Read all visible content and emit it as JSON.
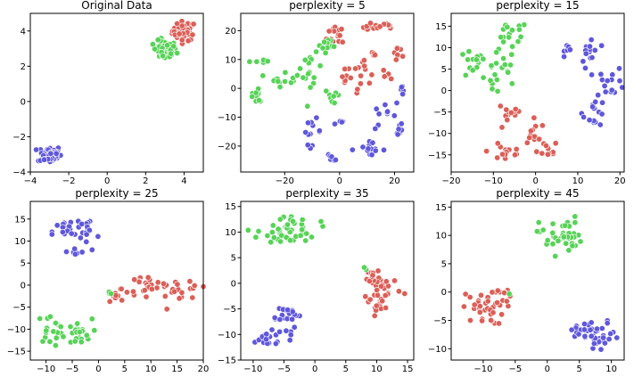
{
  "chart_data": [
    {
      "type": "scatter",
      "title": "Original Data",
      "xlim": [
        -4,
        5
      ],
      "ylim": [
        -4,
        5
      ],
      "xticks": [
        -4,
        -2,
        0,
        2,
        4
      ],
      "yticks": [
        -4,
        -2,
        0,
        2,
        4
      ],
      "series": [
        {
          "color": "#db5f57",
          "clusters": [
            {
              "cx": 4.0,
              "cy": 4.0,
              "rx": 0.55,
              "ry": 0.5,
              "n": 50
            }
          ]
        },
        {
          "color": "#57d357",
          "clusters": [
            {
              "cx": 3.0,
              "cy": 2.9,
              "rx": 0.55,
              "ry": 0.5,
              "n": 50
            }
          ]
        },
        {
          "color": "#5f57db",
          "clusters": [
            {
              "cx": -3.0,
              "cy": -3.0,
              "rx": 0.55,
              "ry": 0.45,
              "n": 50
            }
          ]
        }
      ]
    },
    {
      "type": "scatter",
      "title": "perplexity = 5",
      "xlim": [
        -36,
        27
      ],
      "ylim": [
        -29,
        26
      ],
      "xticks": [
        -20,
        0,
        20
      ],
      "yticks": [
        -20,
        -10,
        0,
        10,
        20
      ],
      "series": [
        {
          "color": "#db5f57",
          "clusters": [
            {
              "cx": 0,
              "cy": 19,
              "rx": 4,
              "ry": 4,
              "n": 14
            },
            {
              "cx": 10,
              "cy": 21,
              "rx": 4,
              "ry": 1,
              "n": 10
            },
            {
              "cx": 17,
              "cy": 22,
              "rx": 3,
              "ry": 1,
              "n": 8
            },
            {
              "cx": 8,
              "cy": 6,
              "rx": 3,
              "ry": 6,
              "n": 12
            },
            {
              "cx": 2,
              "cy": 3,
              "rx": 3,
              "ry": 3,
              "n": 8
            },
            {
              "cx": 18,
              "cy": 5,
              "rx": 2,
              "ry": 2,
              "n": 6
            },
            {
              "cx": 21,
              "cy": 12,
              "rx": 2,
              "ry": 4,
              "n": 6
            },
            {
              "cx": 12,
              "cy": 12,
              "rx": 2,
              "ry": 1,
              "n": 4
            }
          ]
        },
        {
          "color": "#57d357",
          "clusters": [
            {
              "cx": -30,
              "cy": 9.5,
              "rx": 2.5,
              "ry": 0.6,
              "n": 6
            },
            {
              "cx": -30,
              "cy": -3,
              "rx": 4,
              "ry": 3,
              "n": 12
            },
            {
              "cx": -20,
              "cy": 4,
              "rx": 5,
              "ry": 3,
              "n": 14
            },
            {
              "cx": -10,
              "cy": 5,
              "rx": 3,
              "ry": 6,
              "n": 14
            },
            {
              "cx": -5,
              "cy": 15,
              "rx": 4,
              "ry": 4,
              "n": 10
            },
            {
              "cx": -2,
              "cy": -3,
              "rx": 3,
              "ry": 3,
              "n": 8
            }
          ]
        },
        {
          "color": "#5f57db",
          "clusters": [
            {
              "cx": -10,
              "cy": -15,
              "rx": 3,
              "ry": 4,
              "n": 12
            },
            {
              "cx": -3,
              "cy": -24,
              "rx": 3,
              "ry": 1,
              "n": 6
            },
            {
              "cx": 10,
              "cy": -21,
              "rx": 6,
              "ry": 2,
              "n": 14
            },
            {
              "cx": 16,
              "cy": -10,
              "rx": 4,
              "ry": 4,
              "n": 10
            },
            {
              "cx": 23,
              "cy": -2,
              "rx": 2,
              "ry": 3,
              "n": 6
            },
            {
              "cx": 22,
              "cy": -14,
              "rx": 1,
              "ry": 3,
              "n": 6
            },
            {
              "cx": 0,
              "cy": -12,
              "rx": 2,
              "ry": 1,
              "n": 4
            }
          ]
        }
      ]
    },
    {
      "type": "scatter",
      "title": "perplexity = 15",
      "xlim": [
        -20,
        21
      ],
      "ylim": [
        -19,
        18
      ],
      "xticks": [
        -20,
        -10,
        0,
        10,
        20
      ],
      "yticks": [
        -15,
        -10,
        -5,
        0,
        5,
        10,
        15
      ],
      "series": [
        {
          "color": "#db5f57",
          "clusters": [
            {
              "cx": -6,
              "cy": -5,
              "rx": 3,
              "ry": 3,
              "n": 14
            },
            {
              "cx": -7,
              "cy": -14,
              "rx": 4,
              "ry": 3,
              "n": 16
            },
            {
              "cx": 0,
              "cy": -11,
              "rx": 3,
              "ry": 4,
              "n": 14
            },
            {
              "cx": 3,
              "cy": -14,
              "rx": 2,
              "ry": 2,
              "n": 8
            }
          ]
        },
        {
          "color": "#57d357",
          "clusters": [
            {
              "cx": -15,
              "cy": 6,
              "rx": 3,
              "ry": 3,
              "n": 14
            },
            {
              "cx": -8,
              "cy": 5,
              "rx": 3,
              "ry": 4,
              "n": 14
            },
            {
              "cx": -6,
              "cy": 13,
              "rx": 4,
              "ry": 3,
              "n": 16
            },
            {
              "cx": -10,
              "cy": 1,
              "rx": 2,
              "ry": 2,
              "n": 6
            }
          ]
        },
        {
          "color": "#5f57db",
          "clusters": [
            {
              "cx": 8,
              "cy": 10,
              "rx": 1,
              "ry": 1.5,
              "n": 6
            },
            {
              "cx": 13,
              "cy": 9,
              "rx": 2,
              "ry": 4,
              "n": 14
            },
            {
              "cx": 18,
              "cy": 2,
              "rx": 3,
              "ry": 3,
              "n": 14
            },
            {
              "cx": 14,
              "cy": -5,
              "rx": 2.5,
              "ry": 3,
              "n": 16
            }
          ]
        }
      ]
    },
    {
      "type": "scatter",
      "title": "perplexity = 25",
      "xlim": [
        -13,
        20
      ],
      "ylim": [
        -17,
        19
      ],
      "xticks": [
        -10,
        -5,
        0,
        5,
        10,
        15,
        20
      ],
      "yticks": [
        -15,
        -10,
        -5,
        0,
        5,
        10,
        15
      ],
      "series": [
        {
          "color": "#db5f57",
          "clusters": [
            {
              "cx": 4,
              "cy": -2,
              "rx": 2,
              "ry": 1.5,
              "n": 10
            },
            {
              "cx": 9,
              "cy": 0,
              "rx": 3,
              "ry": 2,
              "n": 18
            },
            {
              "cx": 14,
              "cy": -1,
              "rx": 3,
              "ry": 2,
              "n": 16
            },
            {
              "cx": 18,
              "cy": -1,
              "rx": 1.2,
              "ry": 1.5,
              "n": 6
            }
          ]
        },
        {
          "color": "#57d357",
          "clusters": [
            {
              "cx": -9,
              "cy": -10,
              "rx": 2.5,
              "ry": 3,
              "n": 20
            },
            {
              "cx": -4,
              "cy": -11,
              "rx": 2.5,
              "ry": 3,
              "n": 20
            },
            {
              "cx": 2,
              "cy": -2,
              "rx": 0.5,
              "ry": 0.5,
              "n": 3
            }
          ]
        },
        {
          "color": "#5f57db",
          "clusters": [
            {
              "cx": -6,
              "cy": 12,
              "rx": 2.5,
              "ry": 2.5,
              "n": 18
            },
            {
              "cx": -2,
              "cy": 12,
              "rx": 2,
              "ry": 4,
              "n": 18
            },
            {
              "cx": -5,
              "cy": 7.5,
              "rx": 2,
              "ry": 1,
              "n": 8
            }
          ]
        }
      ]
    },
    {
      "type": "scatter",
      "title": "perplexity = 35",
      "xlim": [
        -12,
        16
      ],
      "ylim": [
        -15,
        16
      ],
      "xticks": [
        -10,
        -5,
        0,
        5,
        10,
        15
      ],
      "yticks": [
        -15,
        -10,
        -5,
        0,
        5,
        10,
        15
      ],
      "series": [
        {
          "color": "#db5f57",
          "clusters": [
            {
              "cx": 11,
              "cy": -1,
              "rx": 3,
              "ry": 3,
              "n": 30
            },
            {
              "cx": 9,
              "cy": 2,
              "rx": 1.5,
              "ry": 1,
              "n": 8
            },
            {
              "cx": 11,
              "cy": -5,
              "rx": 2,
              "ry": 1.5,
              "n": 10
            }
          ]
        },
        {
          "color": "#57d357",
          "clusters": [
            {
              "cx": -6,
              "cy": 10,
              "rx": 3,
              "ry": 3,
              "n": 24
            },
            {
              "cx": -2,
              "cy": 11,
              "rx": 2.5,
              "ry": 2.5,
              "n": 22
            },
            {
              "cx": 8,
              "cy": 3,
              "rx": 0.5,
              "ry": 0.4,
              "n": 2
            }
          ]
        },
        {
          "color": "#5f57db",
          "clusters": [
            {
              "cx": -5,
              "cy": -6,
              "rx": 2.5,
              "ry": 1.5,
              "n": 16
            },
            {
              "cx": -8,
              "cy": -11,
              "rx": 3,
              "ry": 1.5,
              "n": 18
            },
            {
              "cx": -5,
              "cy": -9,
              "rx": 1.5,
              "ry": 2,
              "n": 8
            }
          ]
        }
      ]
    },
    {
      "type": "scatter",
      "title": "perplexity = 45",
      "xlim": [
        -15,
        12
      ],
      "ylim": [
        -12,
        16
      ],
      "xticks": [
        -10,
        -5,
        0,
        5,
        10
      ],
      "yticks": [
        -10,
        -5,
        0,
        5,
        10,
        15
      ],
      "series": [
        {
          "color": "#db5f57",
          "clusters": [
            {
              "cx": -10,
              "cy": -3,
              "rx": 3,
              "ry": 2.5,
              "n": 36
            },
            {
              "cx": -7,
              "cy": 0,
              "rx": 1.5,
              "ry": 1,
              "n": 8
            }
          ]
        },
        {
          "color": "#57d357",
          "clusters": [
            {
              "cx": 2,
              "cy": 10,
              "rx": 3,
              "ry": 3,
              "n": 40
            },
            {
              "cx": -6,
              "cy": -0.5,
              "rx": 0.3,
              "ry": 0.3,
              "n": 1
            }
          ]
        },
        {
          "color": "#5f57db",
          "clusters": [
            {
              "cx": 8,
              "cy": -8,
              "rx": 3,
              "ry": 2.5,
              "n": 34
            },
            {
              "cx": 5,
              "cy": -7,
              "rx": 1.5,
              "ry": 1.5,
              "n": 8
            }
          ]
        }
      ]
    }
  ]
}
